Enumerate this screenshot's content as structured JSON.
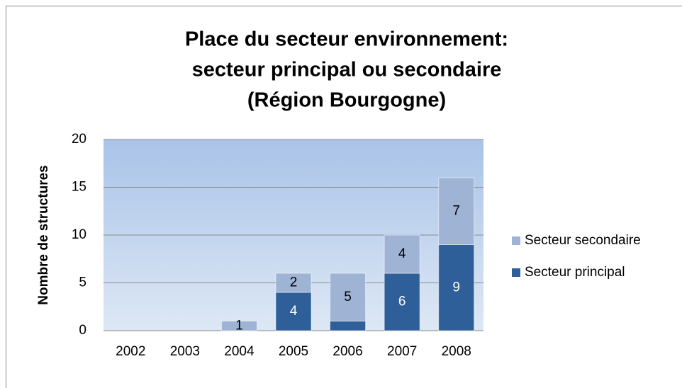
{
  "chart_data": {
    "type": "stacked_bar",
    "title": [
      "Place du secteur environnement:",
      "secteur principal ou secondaire",
      "(Région Bourgogne)"
    ],
    "y_label": "Nombre de structures",
    "categories": [
      "2002",
      "2003",
      "2004",
      "2005",
      "2006",
      "2007",
      "2008"
    ],
    "series": [
      {
        "name": "Secteur principal",
        "color": "#2f5f98",
        "values": [
          0,
          0,
          0,
          4,
          1,
          6,
          9
        ],
        "value_labels": [
          null,
          null,
          null,
          "4",
          null,
          "6",
          "9"
        ]
      },
      {
        "name": "Secteur secondaire",
        "color": "#9fb4d4",
        "values": [
          0,
          0,
          1,
          2,
          5,
          4,
          7
        ],
        "value_labels": [
          null,
          null,
          "1",
          "2",
          "5",
          "4",
          "7"
        ]
      }
    ],
    "ylim": [
      0,
      20
    ],
    "yticks": [
      0,
      5,
      10,
      15,
      20
    ],
    "grid": true,
    "legend": "right"
  }
}
